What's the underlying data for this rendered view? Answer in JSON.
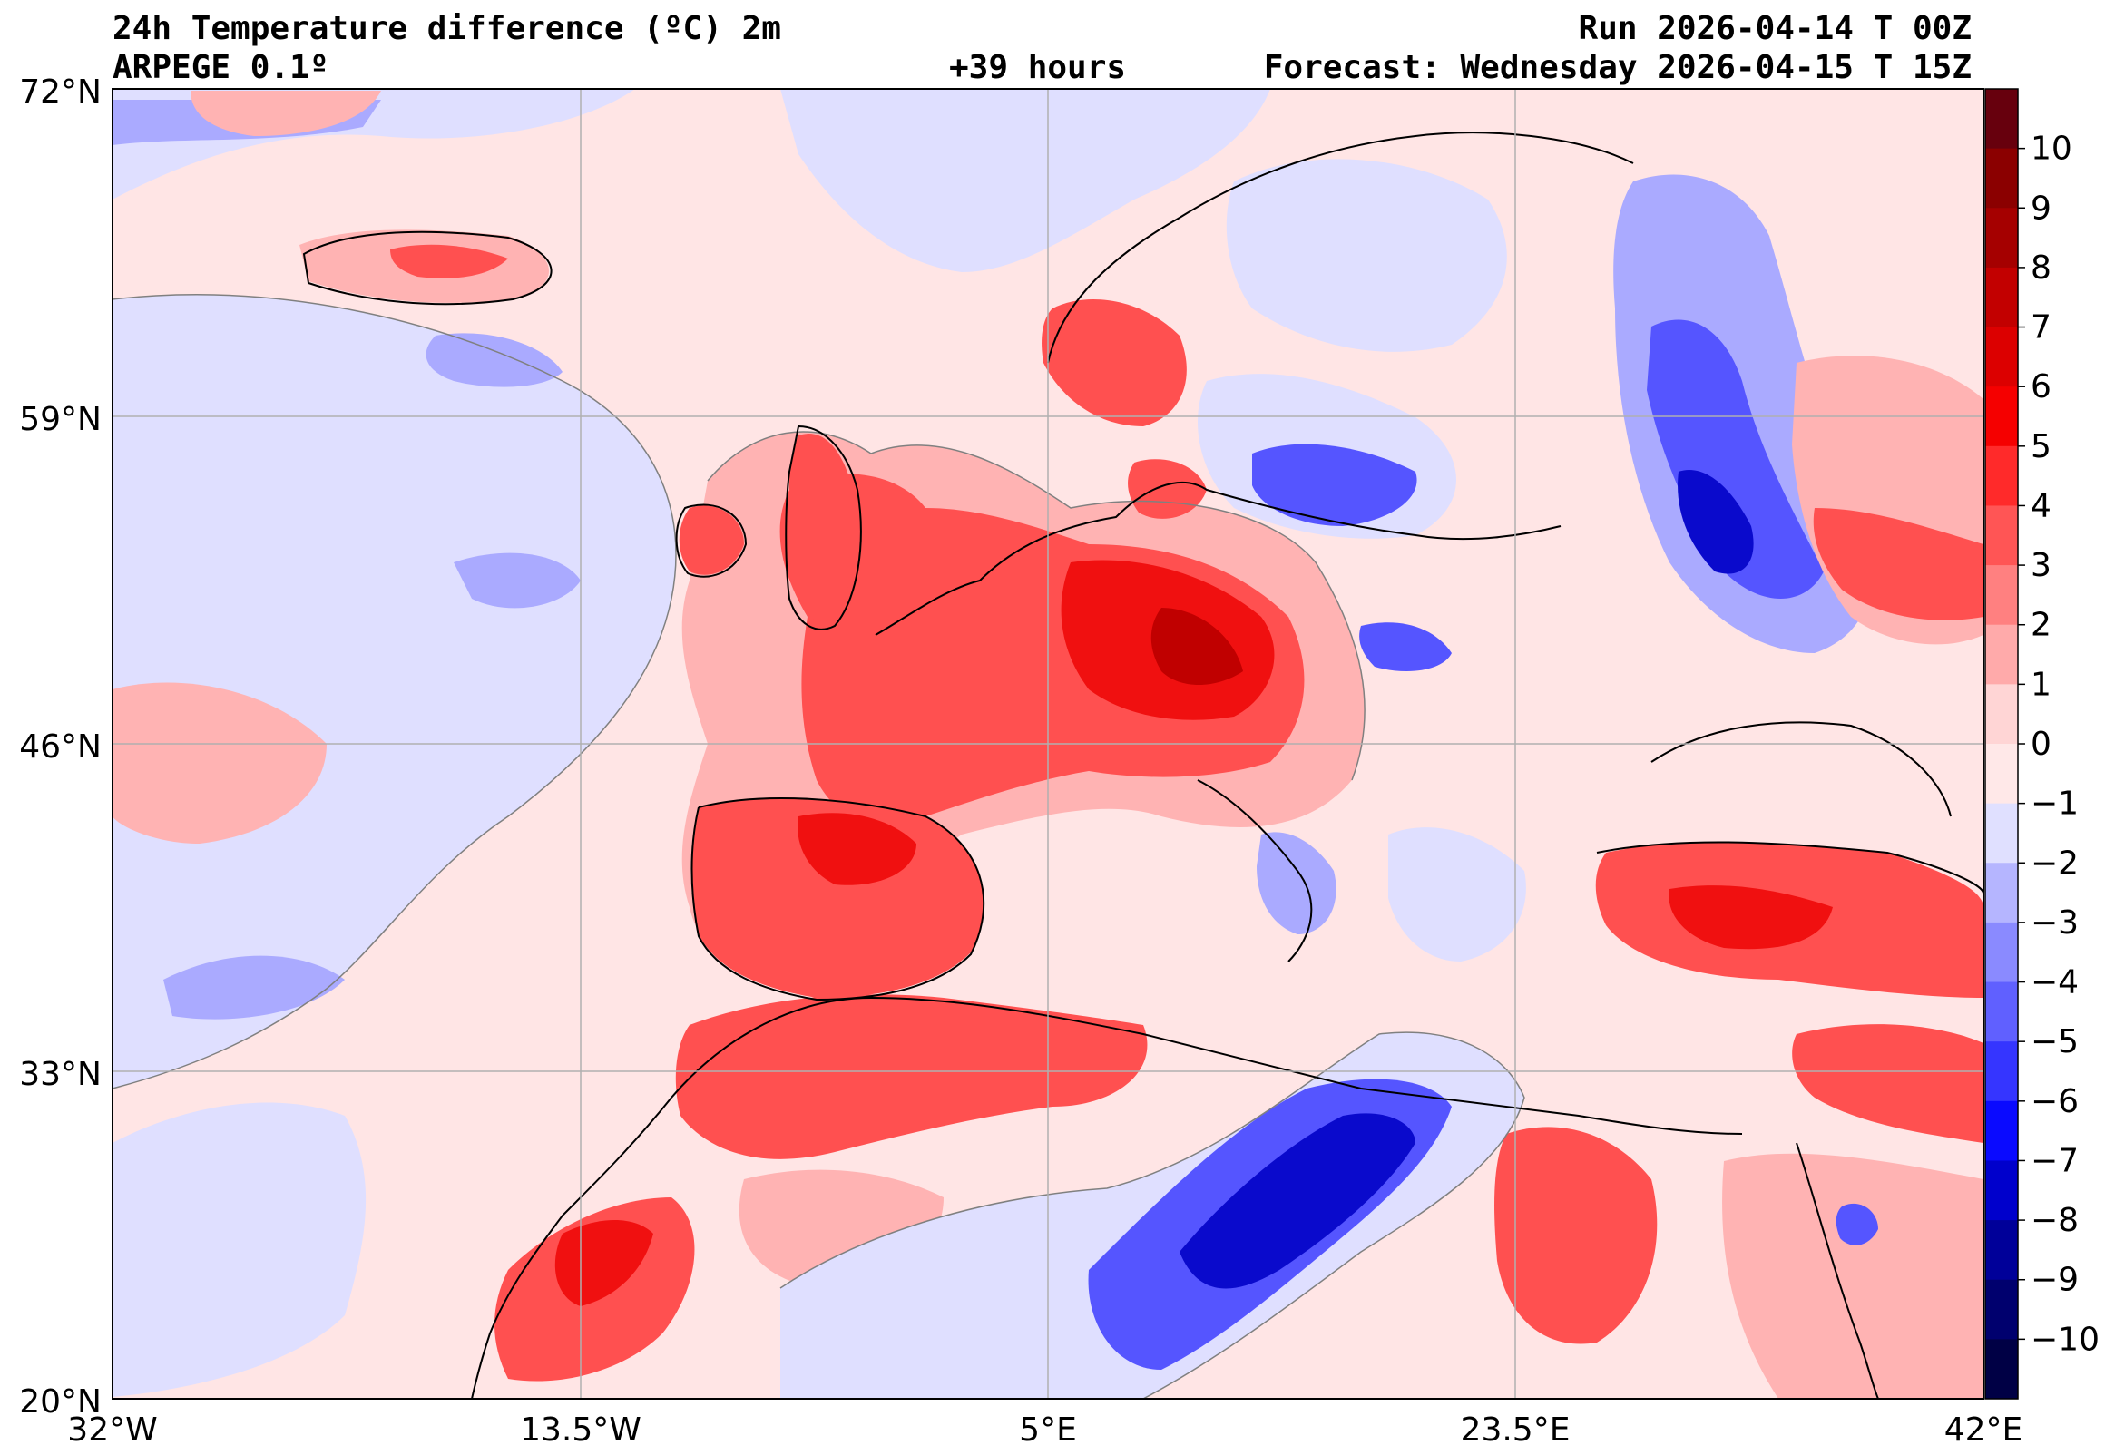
{
  "header": {
    "title": "24h Temperature difference (ºC) 2m",
    "model": "ARPEGE 0.1º",
    "lead_time": "+39 hours",
    "run": "Run 2026-04-14 T 00Z",
    "forecast": "Forecast: Wednesday 2026-04-15 T 15Z"
  },
  "axes": {
    "lat_ticks": [
      "72°N",
      "59°N",
      "46°N",
      "33°N",
      "20°N"
    ],
    "lon_ticks": [
      "32°W",
      "13.5°W",
      "5°E",
      "23.5°E",
      "42°E"
    ],
    "lat_range": [
      20,
      72
    ],
    "lon_range": [
      -32,
      42
    ],
    "grid": true
  },
  "colorbar": {
    "labels": [
      "10",
      "9",
      "8",
      "7",
      "6",
      "5",
      "4",
      "3",
      "2",
      "1",
      "0",
      "−1",
      "−2",
      "−3",
      "−4",
      "−5",
      "−6",
      "−7",
      "−8",
      "−9",
      "−10"
    ],
    "colors": [
      "#67000d",
      "#8b0000",
      "#a50000",
      "#c20000",
      "#dc0000",
      "#f50000",
      "#ff2a2a",
      "#ff5555",
      "#ff8080",
      "#ffaaaa",
      "#ffd5d5",
      "#ffe8e8",
      "#e0e0ff",
      "#b5b5ff",
      "#8a8aff",
      "#6060ff",
      "#3535ff",
      "#0a0aff",
      "#0000cc",
      "#000099",
      "#00006e",
      "#000045"
    ]
  },
  "map_colors": {
    "sea_base": "#ffe5e5",
    "light_blue": "#dfdfff",
    "mid_blue": "#aaaaff",
    "blue": "#5555ff",
    "dark_blue": "#0a0acc",
    "light_red": "#ffb3b3",
    "red": "#ff5050",
    "strong_red": "#f01010",
    "dark_red": "#c00000"
  }
}
